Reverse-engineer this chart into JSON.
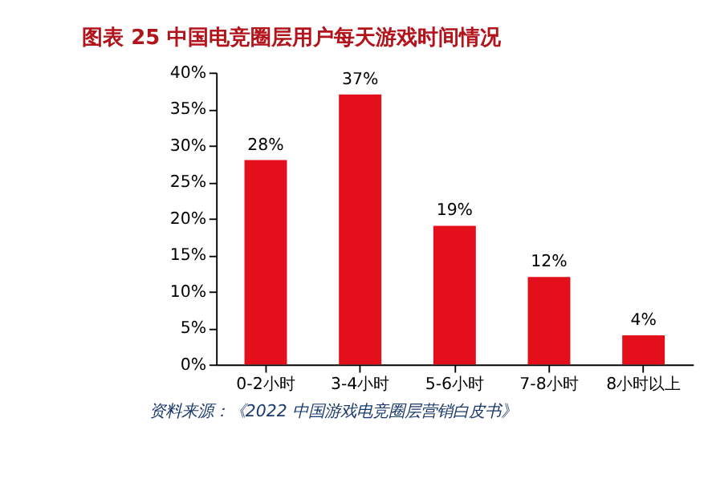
{
  "chart_data": {
    "type": "bar",
    "title": "图表 25 中国电竞圈层用户每天游戏时间情况",
    "categories": [
      "0-2小时",
      "3-4小时",
      "5-6小时",
      "7-8小时",
      "8小时以上"
    ],
    "values": [
      28,
      37,
      19,
      12,
      4
    ],
    "color": "#e3101b",
    "value_labels": [
      "28%",
      "37%",
      "19%",
      "12%",
      "4%"
    ],
    "ylim": [
      0,
      40
    ],
    "yticks": [
      {
        "value": 0,
        "label": "0%"
      },
      {
        "value": 5,
        "label": "5%"
      },
      {
        "value": 10,
        "label": "10%"
      },
      {
        "value": 15,
        "label": "15%"
      },
      {
        "value": 20,
        "label": "20%"
      },
      {
        "value": 25,
        "label": "25%"
      },
      {
        "value": 30,
        "label": "30%"
      },
      {
        "value": 35,
        "label": "35%"
      },
      {
        "value": 40,
        "label": "40%"
      }
    ],
    "grid": false,
    "annotations": [
      "资料来源：《2022 中国游戏电竞圈层营销白皮书》"
    ]
  }
}
